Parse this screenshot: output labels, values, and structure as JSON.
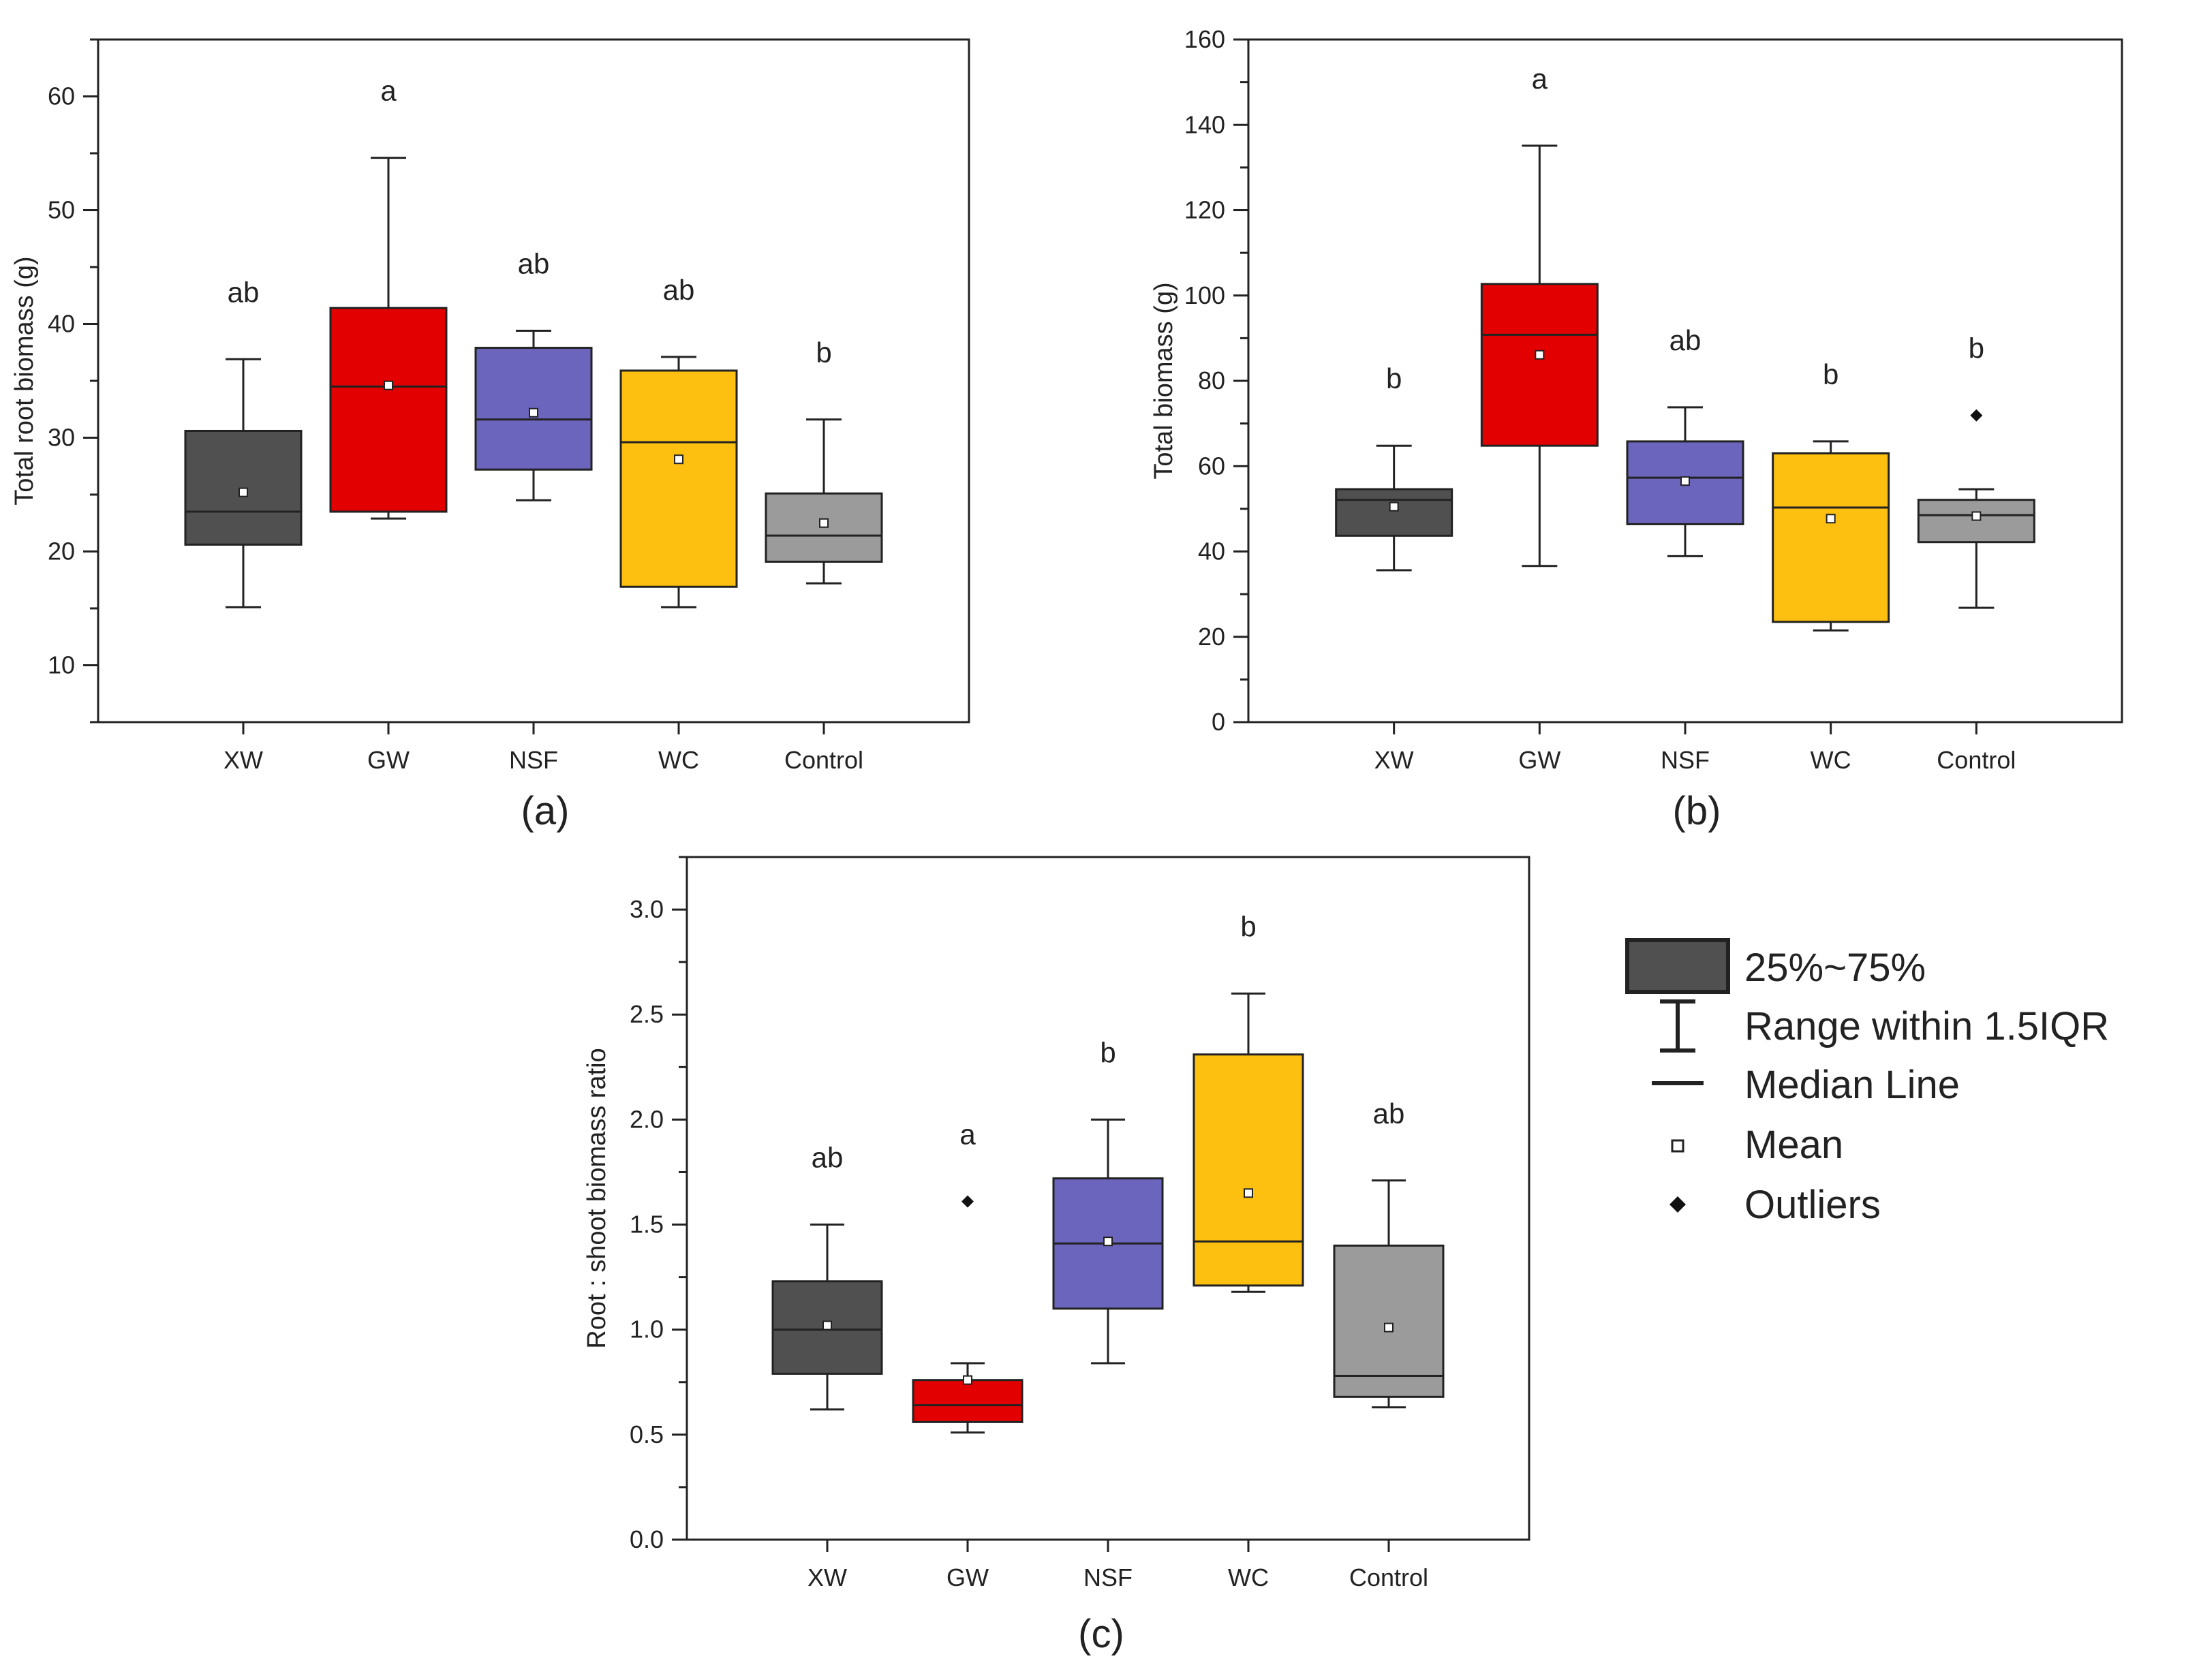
{
  "colors": {
    "XW": "#505050",
    "GW": "#e30000",
    "NSF": "#6b65bd",
    "WC": "#fdbf10",
    "Control": "#9b9b9b",
    "axis": "#222222",
    "legend_box": "#505050"
  },
  "legend": {
    "box_label": "25%~75%",
    "whisker_label": "Range within 1.5IQR",
    "median_label": "Median Line",
    "mean_label": "Mean",
    "outlier_label": "Outliers"
  },
  "chart_data": [
    {
      "type": "box",
      "panel": "(a)",
      "ylabel": "Total root biomass (g)",
      "ylim": [
        5,
        65
      ],
      "yticks": [
        10,
        20,
        30,
        40,
        50,
        60
      ],
      "ytick_labels": [
        "10",
        "20",
        "30",
        "40",
        "50",
        "60"
      ],
      "categories": [
        "XW",
        "GW",
        "NSF",
        "WC",
        "Control"
      ],
      "boxes": [
        {
          "min": 15.1,
          "q1": 20.6,
          "median": 23.5,
          "q3": 30.6,
          "max": 36.9,
          "mean": 25.2,
          "outliers": [],
          "letter": "ab"
        },
        {
          "min": 22.9,
          "q1": 23.5,
          "median": 34.5,
          "q3": 41.4,
          "max": 54.6,
          "mean": 34.6,
          "outliers": [],
          "letter": "a"
        },
        {
          "min": 24.5,
          "q1": 27.2,
          "median": 31.6,
          "q3": 37.9,
          "max": 39.4,
          "mean": 32.2,
          "outliers": [],
          "letter": "ab"
        },
        {
          "min": 15.1,
          "q1": 16.9,
          "median": 29.6,
          "q3": 35.9,
          "max": 37.1,
          "mean": 28.1,
          "outliers": [],
          "letter": "ab"
        },
        {
          "min": 17.2,
          "q1": 19.1,
          "median": 21.4,
          "q3": 25.1,
          "max": 31.6,
          "mean": 22.5,
          "outliers": [],
          "letter": "b"
        }
      ]
    },
    {
      "type": "box",
      "panel": "(b)",
      "ylabel": "Total biomass (g)",
      "ylim": [
        0,
        160
      ],
      "yticks": [
        0,
        20,
        40,
        60,
        80,
        100,
        120,
        140,
        160
      ],
      "ytick_labels": [
        "0",
        "20",
        "40",
        "60",
        "80",
        "100",
        "120",
        "140",
        "160"
      ],
      "categories": [
        "XW",
        "GW",
        "NSF",
        "WC",
        "Control"
      ],
      "boxes": [
        {
          "min": 35.6,
          "q1": 43.7,
          "median": 52.1,
          "q3": 54.6,
          "max": 64.8,
          "mean": 50.5,
          "outliers": [],
          "letter": "b"
        },
        {
          "min": 36.6,
          "q1": 64.8,
          "median": 90.8,
          "q3": 102.7,
          "max": 135.1,
          "mean": 86.1,
          "outliers": [],
          "letter": "a"
        },
        {
          "min": 38.9,
          "q1": 46.4,
          "median": 57.3,
          "q3": 65.8,
          "max": 73.8,
          "mean": 56.5,
          "outliers": [],
          "letter": "ab"
        },
        {
          "min": 21.5,
          "q1": 23.5,
          "median": 50.3,
          "q3": 63.0,
          "max": 65.8,
          "mean": 47.7,
          "outliers": [],
          "letter": "b"
        },
        {
          "min": 26.8,
          "q1": 42.2,
          "median": 48.5,
          "q3": 52.1,
          "max": 54.6,
          "mean": 48.3,
          "outliers": [
            71.9
          ],
          "letter": "b"
        }
      ]
    },
    {
      "type": "box",
      "panel": "(c)",
      "ylabel": "Root : shoot biomass ratio",
      "ylim": [
        0,
        3.25
      ],
      "yticks": [
        0,
        0.5,
        1.0,
        1.5,
        2.0,
        2.5,
        3.0
      ],
      "ytick_labels": [
        "0.0",
        "0.5",
        "1.0",
        "1.5",
        "2.0",
        "2.5",
        "3.0"
      ],
      "categories": [
        "XW",
        "GW",
        "NSF",
        "WC",
        "Control"
      ],
      "boxes": [
        {
          "min": 0.62,
          "q1": 0.79,
          "median": 1.0,
          "q3": 1.23,
          "max": 1.5,
          "mean": 1.02,
          "outliers": [],
          "letter": "ab"
        },
        {
          "min": 0.51,
          "q1": 0.56,
          "median": 0.64,
          "q3": 0.76,
          "max": 0.84,
          "mean": 0.76,
          "outliers": [
            1.61
          ],
          "letter": "a"
        },
        {
          "min": 0.84,
          "q1": 1.1,
          "median": 1.41,
          "q3": 1.72,
          "max": 2.0,
          "mean": 1.42,
          "outliers": [],
          "letter": "b"
        },
        {
          "min": 1.18,
          "q1": 1.21,
          "median": 1.42,
          "q3": 2.31,
          "max": 2.6,
          "mean": 1.65,
          "outliers": [],
          "letter": "b"
        },
        {
          "min": 0.63,
          "q1": 0.68,
          "median": 0.78,
          "q3": 1.4,
          "max": 1.71,
          "mean": 1.01,
          "outliers": [],
          "letter": "ab"
        }
      ]
    }
  ]
}
